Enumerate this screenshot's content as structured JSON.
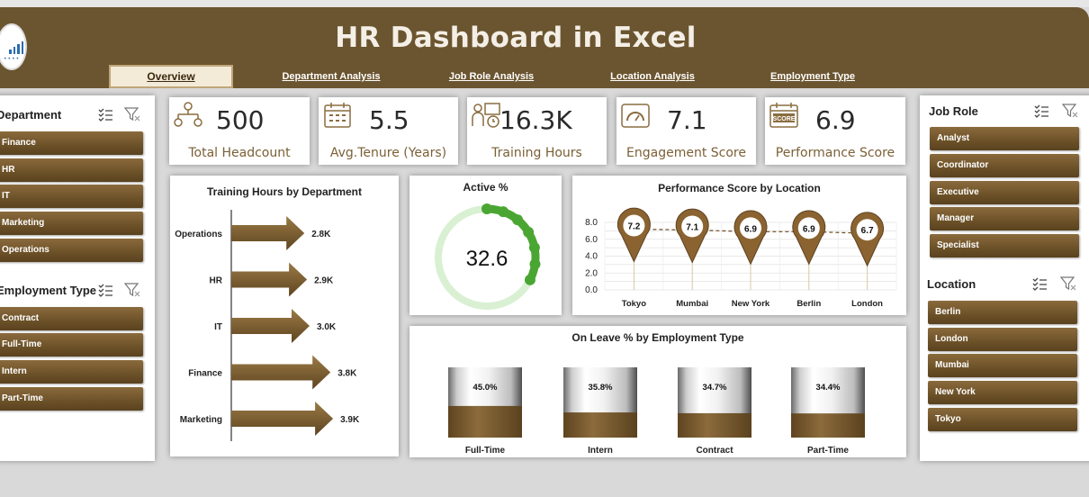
{
  "app": {
    "title": "HR Dashboard in Excel",
    "tabs": [
      {
        "label": "Overview",
        "active": true
      },
      {
        "label": "Department Analysis",
        "active": false
      },
      {
        "label": "Job Role Analysis",
        "active": false
      },
      {
        "label": "Location Analysis",
        "active": false
      },
      {
        "label": "Employment Type",
        "active": false
      }
    ]
  },
  "left_slicers": {
    "department": {
      "title": "Department",
      "items": [
        "Finance",
        "HR",
        "IT",
        "Marketing",
        "Operations"
      ]
    },
    "employment_type": {
      "title": "Employment Type",
      "items": [
        "Contract",
        "Full-Time",
        "Intern",
        "Part-Time"
      ]
    }
  },
  "right_slicers": {
    "job_role": {
      "title": "Job Role",
      "items": [
        "Analyst",
        "Coordinator",
        "Executive",
        "Manager",
        "Specialist"
      ]
    },
    "location": {
      "title": "Location",
      "items": [
        "Berlin",
        "London",
        "Mumbai",
        "New York",
        "Tokyo"
      ]
    }
  },
  "kpis": [
    {
      "value": "500",
      "label": "Total Headcount",
      "icon": "org-chart-icon"
    },
    {
      "value": "5.5",
      "label": "Avg.Tenure (Years)",
      "icon": "calendar-icon"
    },
    {
      "value": "16.3K",
      "label": "Training Hours",
      "icon": "trainer-icon"
    },
    {
      "value": "7.1",
      "label": "Engagement Score",
      "icon": "gauge-icon"
    },
    {
      "value": "6.9",
      "label": "Performance Score",
      "icon": "score-icon"
    }
  ],
  "colors": {
    "header": "#6b5530",
    "accent": "#7b5a2a",
    "green": "#4aa632",
    "light_green": "#d9f0d3"
  },
  "chart_data": [
    {
      "type": "bar",
      "title": "Training Hours by Department",
      "orientation": "horizontal",
      "categories": [
        "Operations",
        "HR",
        "IT",
        "Finance",
        "Marketing"
      ],
      "values": [
        2800,
        2900,
        3000,
        3800,
        3900
      ],
      "data_labels": [
        "2.8K",
        "2.9K",
        "3.0K",
        "3.8K",
        "3.9K"
      ]
    },
    {
      "type": "pie",
      "title": "Active %",
      "value": 32.6,
      "value_label": "32.6",
      "max": 100
    },
    {
      "type": "line",
      "title": "Performance Score by Location",
      "categories": [
        "Tokyo",
        "Mumbai",
        "New York",
        "Berlin",
        "London"
      ],
      "values": [
        7.2,
        7.1,
        6.9,
        6.9,
        6.7
      ],
      "data_labels": [
        "7.2",
        "7.1",
        "6.9",
        "6.9",
        "6.7"
      ],
      "y_ticks": [
        "8.0",
        "6.0",
        "4.0",
        "2.0",
        "0.0"
      ],
      "ylim": [
        0,
        8
      ],
      "grid": true
    },
    {
      "type": "bar",
      "title": "On Leave % by Employment Type",
      "categories": [
        "Full-Time",
        "Intern",
        "Contract",
        "Part-Time"
      ],
      "values": [
        45.0,
        35.8,
        34.7,
        34.4
      ],
      "data_labels": [
        "45.0%",
        "35.8%",
        "34.7%",
        "34.4%"
      ],
      "ylim": [
        0,
        100
      ]
    }
  ]
}
